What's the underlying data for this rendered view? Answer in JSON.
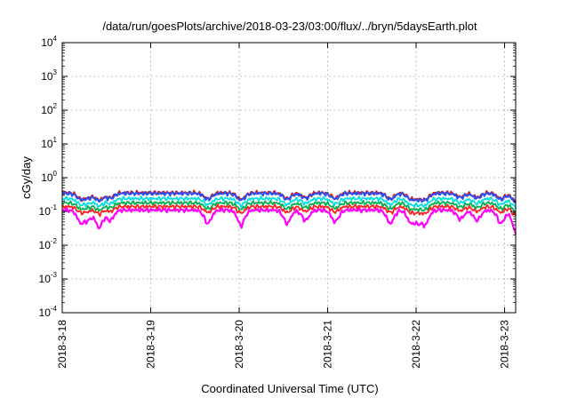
{
  "chart_data": {
    "type": "line",
    "title": "/data/run/goesPlots/archive/2018-03-23/03:00/flux/../bryn/5daysEarth.plot",
    "xlabel": "Coordinated Universal Time (UTC)",
    "ylabel": "cGy/day",
    "y_scale": "log",
    "ylim": [
      0.0001,
      10000
    ],
    "xlim": [
      "2018-03-18T00:00",
      "2018-03-23T03:00"
    ],
    "grid": true,
    "y_ticks": [
      {
        "base": "10",
        "exp": "-4"
      },
      {
        "base": "10",
        "exp": "-3"
      },
      {
        "base": "10",
        "exp": "-2"
      },
      {
        "base": "10",
        "exp": "-1"
      },
      {
        "base": "10",
        "exp": "0"
      },
      {
        "base": "10",
        "exp": "1"
      },
      {
        "base": "10",
        "exp": "2"
      },
      {
        "base": "10",
        "exp": "3"
      },
      {
        "base": "10",
        "exp": "4"
      }
    ],
    "x_ticks": [
      "2018-3-18",
      "2018-3-19",
      "2018-3-20",
      "2018-3-21",
      "2018-3-22",
      "2018-3-23"
    ],
    "series": [
      {
        "color": "#ff00ff",
        "level": 0.11
      },
      {
        "color": "#ff2020",
        "level": 0.14
      },
      {
        "color": "#00b050",
        "level": 0.18
      },
      {
        "color": "#00e0e0",
        "level": 0.24
      },
      {
        "color": "#d02020",
        "level": 0.36
      },
      {
        "color": "#2050ff",
        "level": 0.34
      }
    ],
    "dips": [
      {
        "x": "2018-03-18T05:00",
        "depth": 0.55
      },
      {
        "x": "2018-03-18T07:00",
        "depth": 0.45
      },
      {
        "x": "2018-03-18T10:00",
        "depth": 0.7
      },
      {
        "x": "2018-03-18T13:00",
        "depth": 0.5
      },
      {
        "x": "2018-03-19T15:30",
        "depth": 0.6
      },
      {
        "x": "2018-03-20T00:30",
        "depth": 0.65
      },
      {
        "x": "2018-03-20T13:00",
        "depth": 0.6
      },
      {
        "x": "2018-03-20T18:00",
        "depth": 0.5
      },
      {
        "x": "2018-03-21T02:00",
        "depth": 0.55
      },
      {
        "x": "2018-03-21T17:00",
        "depth": 0.6
      },
      {
        "x": "2018-03-21T22:30",
        "depth": 0.55
      },
      {
        "x": "2018-03-22T00:30",
        "depth": 0.5
      },
      {
        "x": "2018-03-22T02:30",
        "depth": 0.6
      },
      {
        "x": "2018-03-22T12:00",
        "depth": 0.45
      },
      {
        "x": "2018-03-22T16:30",
        "depth": 0.5
      },
      {
        "x": "2018-03-22T23:00",
        "depth": 0.6
      },
      {
        "x": "2018-03-23T03:00",
        "depth": 0.8
      }
    ]
  }
}
